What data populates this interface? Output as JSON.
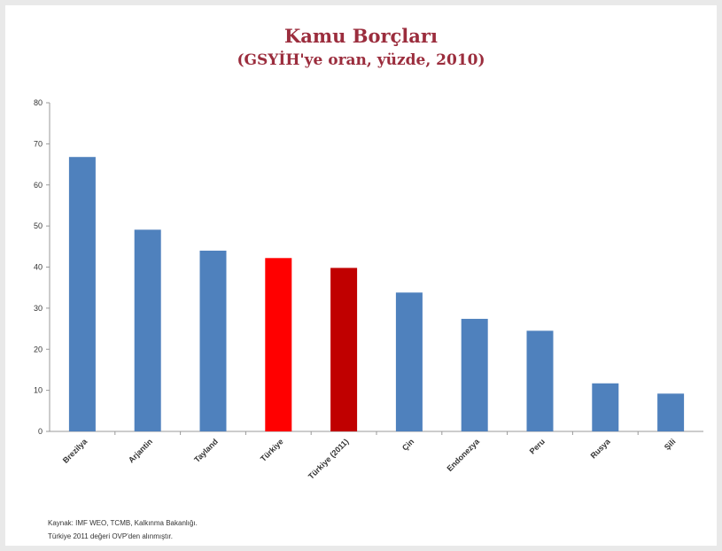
{
  "chart_data": {
    "type": "bar",
    "title": "Kamu Borçları",
    "subtitle": "(GSYİH'ye oran, yüzde, 2010)",
    "xlabel": "",
    "ylabel": "",
    "ylim": [
      0,
      80
    ],
    "yticks": [
      0,
      10,
      20,
      30,
      40,
      50,
      60,
      70,
      80
    ],
    "grid": false,
    "categories": [
      "Brezilya",
      "Arjantin",
      "Tayland",
      "Türkiye",
      "Türkiye (2011)",
      "Çin",
      "Endonezya",
      "Peru",
      "Rusya",
      "Şili"
    ],
    "values": [
      66.8,
      49.1,
      44.0,
      42.2,
      39.8,
      33.8,
      27.4,
      24.5,
      11.7,
      9.2
    ],
    "colors": [
      "#4f81bd",
      "#4f81bd",
      "#4f81bd",
      "#ff0000",
      "#c00000",
      "#4f81bd",
      "#4f81bd",
      "#4f81bd",
      "#4f81bd",
      "#4f81bd"
    ]
  },
  "source": {
    "line1": "Kaynak: IMF WEO, TCMB, Kalkınma Bakanlığı.",
    "line2": "Türkiye 2011 değeri OVP'den alınmıştır."
  }
}
